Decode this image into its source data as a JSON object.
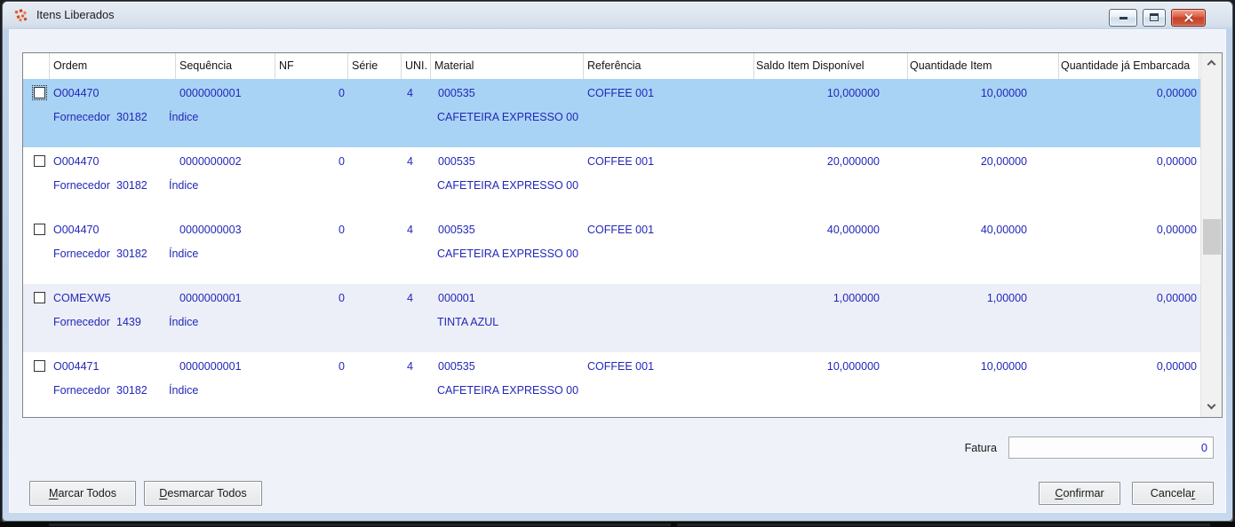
{
  "window": {
    "title": "Itens Liberados"
  },
  "icons": {
    "app": "app-logo-icon",
    "minimize": "minimize-icon",
    "maximize": "maximize-icon",
    "close": "close-icon",
    "scroll_up": "chevron-up-icon",
    "scroll_down": "chevron-down-icon",
    "row_checkbox": "checkbox-unchecked"
  },
  "table": {
    "columns": [
      "Ordem",
      "Sequência",
      "NF",
      "Série",
      "UNI.",
      "Material",
      "Referência",
      "Saldo Item Disponível",
      "Quantidade Item",
      "Quantidade já Embarcada"
    ],
    "row_labels": {
      "fornecedor": "Fornecedor",
      "indice": "Índice"
    },
    "rows": [
      {
        "selected": true,
        "focused": true,
        "checked": false,
        "ordem": "O004470",
        "sequencia": "0000000001",
        "nf": "0",
        "serie": "",
        "uni": "4",
        "material": "000535",
        "referencia": "COFFEE 001",
        "saldo": "10,000000",
        "qtd_item": "10,00000",
        "qtd_embarcada": "0,00000",
        "fornecedor": "30182",
        "descricao": "CAFETEIRA EXPRESSO 00"
      },
      {
        "selected": false,
        "focused": false,
        "checked": false,
        "ordem": "O004470",
        "sequencia": "0000000002",
        "nf": "0",
        "serie": "",
        "uni": "4",
        "material": "000535",
        "referencia": "COFFEE 001",
        "saldo": "20,000000",
        "qtd_item": "20,00000",
        "qtd_embarcada": "0,00000",
        "fornecedor": "30182",
        "descricao": "CAFETEIRA EXPRESSO 00"
      },
      {
        "selected": false,
        "focused": false,
        "checked": false,
        "ordem": "O004470",
        "sequencia": "0000000003",
        "nf": "0",
        "serie": "",
        "uni": "4",
        "material": "000535",
        "referencia": "COFFEE 001",
        "saldo": "40,000000",
        "qtd_item": "40,00000",
        "qtd_embarcada": "0,00000",
        "fornecedor": "30182",
        "descricao": "CAFETEIRA EXPRESSO 00"
      },
      {
        "selected": false,
        "focused": false,
        "checked": false,
        "tinted": true,
        "ordem": "COMEXW5",
        "sequencia": "0000000001",
        "nf": "0",
        "serie": "",
        "uni": "4",
        "material": "000001",
        "referencia": "",
        "saldo": "1,000000",
        "qtd_item": "1,00000",
        "qtd_embarcada": "0,00000",
        "fornecedor": "1439",
        "descricao": "TINTA AZUL"
      },
      {
        "selected": false,
        "focused": false,
        "checked": false,
        "ordem": "O004471",
        "sequencia": "0000000001",
        "nf": "0",
        "serie": "",
        "uni": "4",
        "material": "000535",
        "referencia": "COFFEE 001",
        "saldo": "10,000000",
        "qtd_item": "10,00000",
        "qtd_embarcada": "0,00000",
        "fornecedor": "30182",
        "descricao": "CAFETEIRA EXPRESSO 00"
      }
    ]
  },
  "footer": {
    "fatura_label": "Fatura",
    "fatura_value": "0",
    "buttons": {
      "marcar": {
        "label": "Marcar Todos",
        "accesskey_index": 0
      },
      "desmarcar": {
        "label": "Desmarcar Todos",
        "accesskey_index": 0
      },
      "confirmar": {
        "label": "Confirmar",
        "accesskey_index": 0
      },
      "cancelar": {
        "label": "Cancelar",
        "accesskey_index": 7
      }
    }
  },
  "colors": {
    "selection_bg": "#a9d3f5",
    "group_alt_bg": "#edeff8",
    "data_text": "#2227b8",
    "close_button": "#c6432c",
    "window_border": "#b9cee6",
    "client_bg": "#eff2f8"
  }
}
